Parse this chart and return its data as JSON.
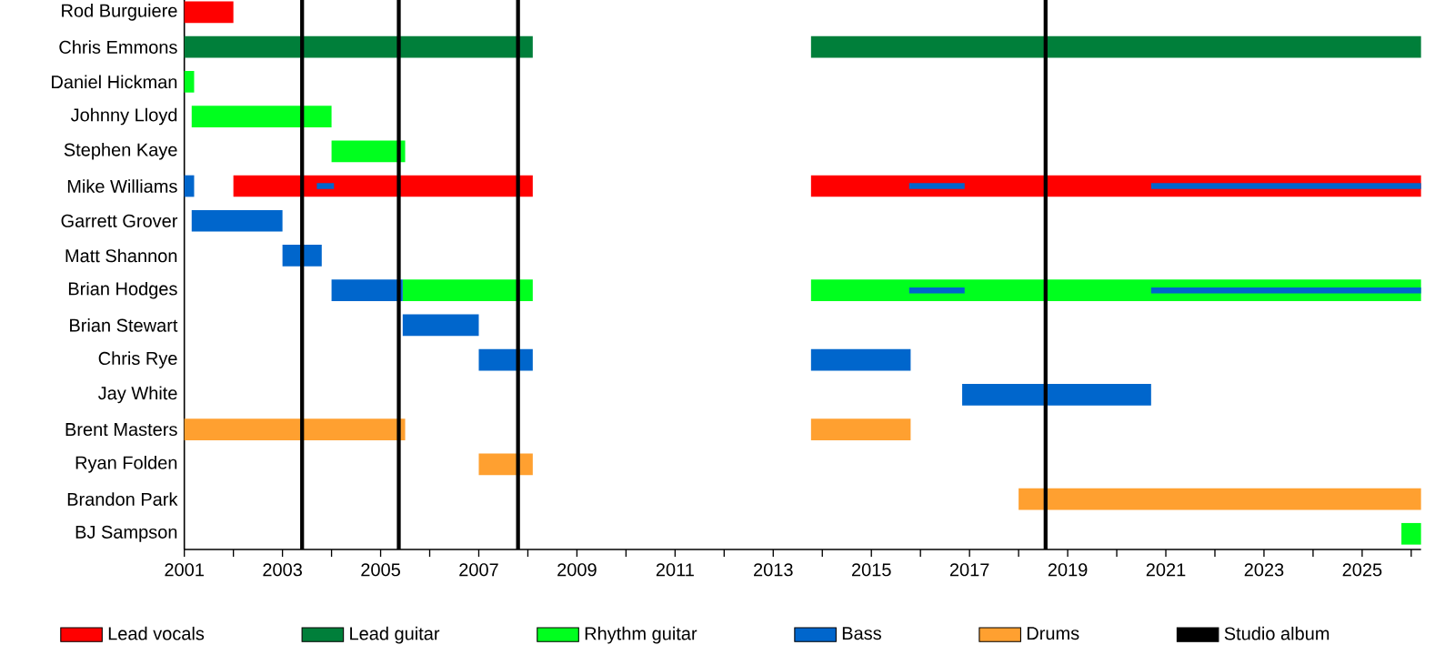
{
  "chart_data": {
    "type": "bar",
    "orientation": "horizontal",
    "legend": "bottom",
    "categories": [
      "Rod Burguiere",
      "Chris Emmons",
      "Daniel Hickman",
      "Johnny Lloyd",
      "Stephen Kaye",
      "Mike Williams",
      "Garrett Grover",
      "Matt Shannon",
      "Brian Hodges",
      "Brian Stewart",
      "Chris Rye",
      "Jay White",
      "Brent Masters",
      "Ryan Folden",
      "Brandon Park",
      "BJ Sampson"
    ],
    "xlim": [
      2001,
      2026.2
    ],
    "xticks": [
      2001,
      {
        "value": 2002,
        "label": null
      },
      2003,
      {
        "value": 2004,
        "label": null
      },
      2005,
      {
        "value": 2006,
        "label": null
      },
      2007,
      {
        "value": 2008,
        "label": null
      },
      2009,
      {
        "value": 2010,
        "label": null
      },
      2011,
      {
        "value": 2012,
        "label": null
      },
      2013,
      {
        "value": 2014,
        "label": null
      },
      2015,
      {
        "value": 2016,
        "label": null
      },
      2017,
      {
        "value": 2018,
        "label": null
      },
      2019,
      {
        "value": 2020,
        "label": null
      },
      2021,
      {
        "value": 2022,
        "label": null
      },
      2023,
      {
        "value": 2024,
        "label": null
      },
      2025,
      {
        "value": 2026,
        "label": null
      }
    ],
    "series": [
      {
        "name": "Lead vocals",
        "color": "#ff0000",
        "base": [
          2001,
          null,
          null,
          null,
          null,
          2002,
          null,
          null,
          null,
          null,
          null,
          null,
          null,
          null,
          null,
          null
        ],
        "values": [
          1.0,
          null,
          null,
          null,
          null,
          6.1,
          null,
          null,
          null,
          null,
          null,
          null,
          null,
          null,
          null,
          null
        ]
      },
      {
        "color": "#ff0000",
        "base": [
          null,
          null,
          null,
          null,
          null,
          2013.77,
          null,
          null,
          null,
          null,
          null,
          null,
          null,
          null,
          null,
          null
        ],
        "values": [
          null,
          null,
          null,
          null,
          null,
          12.43,
          null,
          null,
          null,
          null,
          null,
          null,
          null,
          null,
          null,
          null
        ]
      },
      {
        "name": "Lead guitar",
        "color": "#007f3a",
        "base": [
          null,
          2001,
          null,
          null,
          null,
          null,
          null,
          null,
          null,
          null,
          null,
          null,
          null,
          null,
          null,
          null
        ],
        "values": [
          null,
          7.1,
          null,
          null,
          null,
          null,
          null,
          null,
          null,
          null,
          null,
          null,
          null,
          null,
          null,
          null
        ]
      },
      {
        "color": "#007f3a",
        "base": [
          null,
          2013.77,
          null,
          null,
          null,
          null,
          null,
          null,
          null,
          null,
          null,
          null,
          null,
          null,
          null,
          null
        ],
        "values": [
          null,
          12.43,
          null,
          null,
          null,
          null,
          null,
          null,
          null,
          null,
          null,
          null,
          null,
          null,
          null,
          null
        ]
      },
      {
        "name": "Rhythm guitar",
        "color": "#00ff1e",
        "base": [
          null,
          null,
          2001,
          2001.15,
          2004,
          null,
          null,
          null,
          2005.45,
          null,
          null,
          null,
          null,
          null,
          null,
          2025.8
        ],
        "values": [
          null,
          null,
          0.2,
          2.85,
          1.5,
          null,
          null,
          null,
          2.65,
          null,
          null,
          null,
          null,
          null,
          null,
          0.4
        ]
      },
      {
        "color": "#00ff1e",
        "base": [
          null,
          null,
          null,
          null,
          null,
          null,
          null,
          null,
          2013.77,
          null,
          null,
          null,
          null,
          null,
          null,
          null
        ],
        "values": [
          null,
          null,
          null,
          null,
          null,
          null,
          null,
          null,
          12.43,
          null,
          null,
          null,
          null,
          null,
          null,
          null
        ]
      },
      {
        "name": "Bass",
        "color": "#0066cc",
        "base": [
          null,
          null,
          null,
          null,
          null,
          2001,
          2001.15,
          2003,
          2004,
          2005.45,
          2007,
          2016.85,
          null,
          null,
          null,
          null
        ],
        "values": [
          null,
          null,
          null,
          null,
          null,
          0.2,
          1.85,
          0.8,
          1.45,
          1.55,
          1.1,
          3.85,
          null,
          null,
          null,
          null
        ]
      },
      {
        "color": "#0066cc",
        "base": [
          null,
          null,
          null,
          null,
          null,
          null,
          null,
          null,
          null,
          null,
          2013.77,
          null,
          null,
          null,
          null,
          null
        ],
        "values": [
          null,
          null,
          null,
          null,
          null,
          null,
          null,
          null,
          null,
          null,
          2.03,
          null,
          null,
          null,
          null,
          null
        ]
      },
      {
        "name": "Drums",
        "color": "#ffa030",
        "base": [
          null,
          null,
          null,
          null,
          null,
          null,
          null,
          null,
          null,
          null,
          null,
          null,
          2001,
          2007,
          2018,
          null
        ],
        "values": [
          null,
          null,
          null,
          null,
          null,
          null,
          null,
          null,
          null,
          null,
          null,
          null,
          4.5,
          1.1,
          8.2,
          null
        ]
      },
      {
        "color": "#ffa030",
        "base": [
          null,
          null,
          null,
          null,
          null,
          null,
          null,
          null,
          null,
          null,
          null,
          null,
          2013.77,
          null,
          null,
          null
        ],
        "values": [
          null,
          null,
          null,
          null,
          null,
          null,
          null,
          null,
          null,
          null,
          null,
          null,
          2.03,
          null,
          null,
          null
        ]
      },
      {
        "color": "#0066cc",
        "base": [
          null,
          null,
          null,
          null,
          null,
          2003.7,
          null,
          null,
          2015.77,
          null,
          null,
          null,
          null,
          null,
          null,
          null
        ],
        "values": [
          null,
          null,
          null,
          null,
          null,
          0.35,
          null,
          null,
          1.13,
          null,
          null,
          null,
          null,
          null,
          null,
          null
        ]
      },
      {
        "color": "#0066cc",
        "base": [
          null,
          null,
          null,
          null,
          null,
          2015.77,
          null,
          null,
          2020.7,
          null,
          null,
          null,
          null,
          null,
          null,
          null
        ],
        "values": [
          null,
          null,
          null,
          null,
          null,
          1.13,
          null,
          null,
          5.5,
          null,
          null,
          null,
          null,
          null,
          null,
          null
        ]
      },
      {
        "color": "#0066cc",
        "base": [
          null,
          null,
          null,
          null,
          null,
          2020.7,
          null,
          null,
          null,
          null,
          null,
          null,
          null,
          null,
          null,
          null
        ],
        "values": [
          null,
          null,
          null,
          null,
          null,
          5.5,
          null,
          null,
          null,
          null,
          null,
          null,
          null,
          null,
          null,
          null
        ]
      }
    ],
    "ref_lines": [
      {
        "axis": "x",
        "value": 2003.4,
        "label": "Studio album",
        "color": "#000000"
      },
      {
        "axis": "x",
        "value": 2005.37,
        "color": "#000000"
      },
      {
        "axis": "x",
        "value": 2007.8,
        "color": "#000000"
      },
      {
        "axis": "x",
        "value": 2018.55,
        "color": "#000000"
      }
    ]
  }
}
